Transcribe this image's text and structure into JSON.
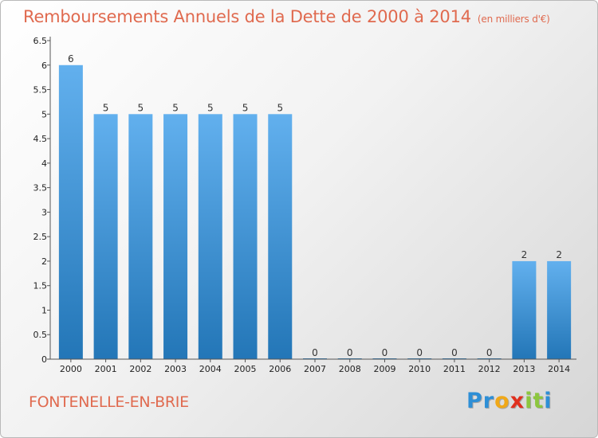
{
  "title": "Remboursements Annuels de la Dette de 2000 à 2014",
  "subtitle": "(en milliers d'€)",
  "commune": "FONTENELLE-EN-BRIE",
  "logo": {
    "letters": [
      "P",
      "r",
      "o",
      "x",
      "i",
      "t",
      "i"
    ],
    "colors": [
      "#2e8fd6",
      "#2e8fd6",
      "#f0a818",
      "#e0301e",
      "#8cc63e",
      "#8cc63e",
      "#2e8fd6"
    ]
  },
  "colors": {
    "bar_top": "#62b0ee",
    "bar_bottom": "#2376b7",
    "title": "#e06a4f"
  },
  "chart_data": {
    "type": "bar",
    "categories": [
      "2000",
      "2001",
      "2002",
      "2003",
      "2004",
      "2005",
      "2006",
      "2007",
      "2008",
      "2009",
      "2010",
      "2011",
      "2012",
      "2013",
      "2014"
    ],
    "values": [
      6,
      5,
      5,
      5,
      5,
      5,
      5,
      0,
      0,
      0,
      0,
      0,
      0,
      2,
      2
    ],
    "data_labels": [
      "6",
      "5",
      "5",
      "5",
      "5",
      "5",
      "5",
      "0",
      "0",
      "0",
      "0",
      "0",
      "0",
      "2",
      "2"
    ],
    "yticks": [
      "0",
      "0.5",
      "1",
      "1.5",
      "2",
      "2.5",
      "3",
      "3.5",
      "4",
      "4.5",
      "5",
      "5.5",
      "6",
      "6.5"
    ],
    "ylim": [
      0,
      6.5
    ],
    "grid": false
  }
}
